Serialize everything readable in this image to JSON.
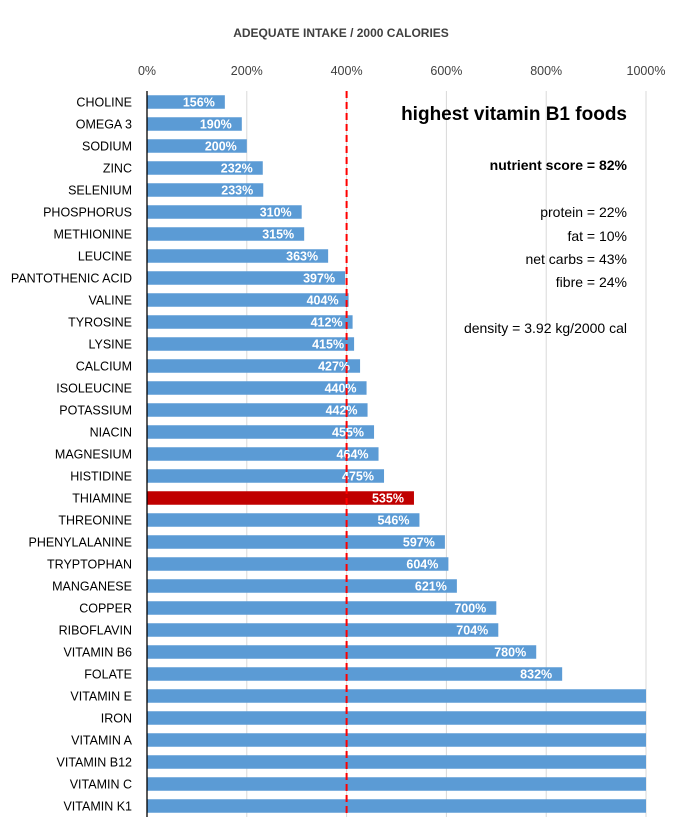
{
  "chart_data": {
    "type": "bar",
    "orientation": "horizontal",
    "title": "ADEQUATE INTAKE / 2000 CALORIES",
    "xlim": [
      0,
      1000
    ],
    "xticks": [
      0,
      200,
      400,
      600,
      800,
      1000
    ],
    "xtick_labels": [
      "0%",
      "200%",
      "400%",
      "600%",
      "800%",
      "1000%"
    ],
    "reference_line": 400,
    "highlight": "THIAMINE",
    "categories": [
      "CHOLINE",
      "OMEGA 3",
      "SODIUM",
      "ZINC",
      "SELENIUM",
      "PHOSPHORUS",
      "METHIONINE",
      "LEUCINE",
      "PANTOTHENIC ACID",
      "VALINE",
      "TYROSINE",
      "LYSINE",
      "CALCIUM",
      "ISOLEUCINE",
      "POTASSIUM",
      "NIACIN",
      "MAGNESIUM",
      "HISTIDINE",
      "THIAMINE",
      "THREONINE",
      "PHENYLALANINE",
      "TRYPTOPHAN",
      "MANGANESE",
      "COPPER",
      "RIBOFLAVIN",
      "VITAMIN B6",
      "FOLATE",
      "VITAMIN E",
      "IRON",
      "VITAMIN A",
      "VITAMIN B12",
      "VITAMIN C",
      "VITAMIN K1"
    ],
    "values": [
      156,
      190,
      200,
      232,
      233,
      310,
      315,
      363,
      397,
      404,
      412,
      415,
      427,
      440,
      442,
      455,
      464,
      475,
      535,
      546,
      597,
      604,
      621,
      700,
      704,
      780,
      832,
      1000,
      1000,
      1000,
      1000,
      1000,
      1000
    ],
    "data_labels": [
      "156%",
      "190%",
      "200%",
      "232%",
      "233%",
      "310%",
      "315%",
      "363%",
      "397%",
      "404%",
      "412%",
      "415%",
      "427%",
      "440%",
      "442%",
      "455%",
      "464%",
      "475%",
      "535%",
      "546%",
      "597%",
      "604%",
      "621%",
      "700%",
      "704%",
      "780%",
      "832%",
      "",
      "",
      "",
      "",
      "",
      ""
    ]
  },
  "info": {
    "heading": "highest vitamin B1 foods",
    "score": "nutrient score = 82%",
    "protein": "protein = 22%",
    "fat": "fat = 10%",
    "net_carbs": "net carbs = 43%",
    "fibre": "fibre = 24%",
    "density": "density = 3.92 kg/2000 cal"
  },
  "colors": {
    "bar": "#5b9bd5",
    "highlight_bar": "#c00000",
    "reference_line": "#ff0000",
    "grid": "#d9d9d9",
    "axis": "#000000",
    "label_text": "#000000",
    "tick_text": "#404040",
    "data_label_text": "#ffffff"
  }
}
